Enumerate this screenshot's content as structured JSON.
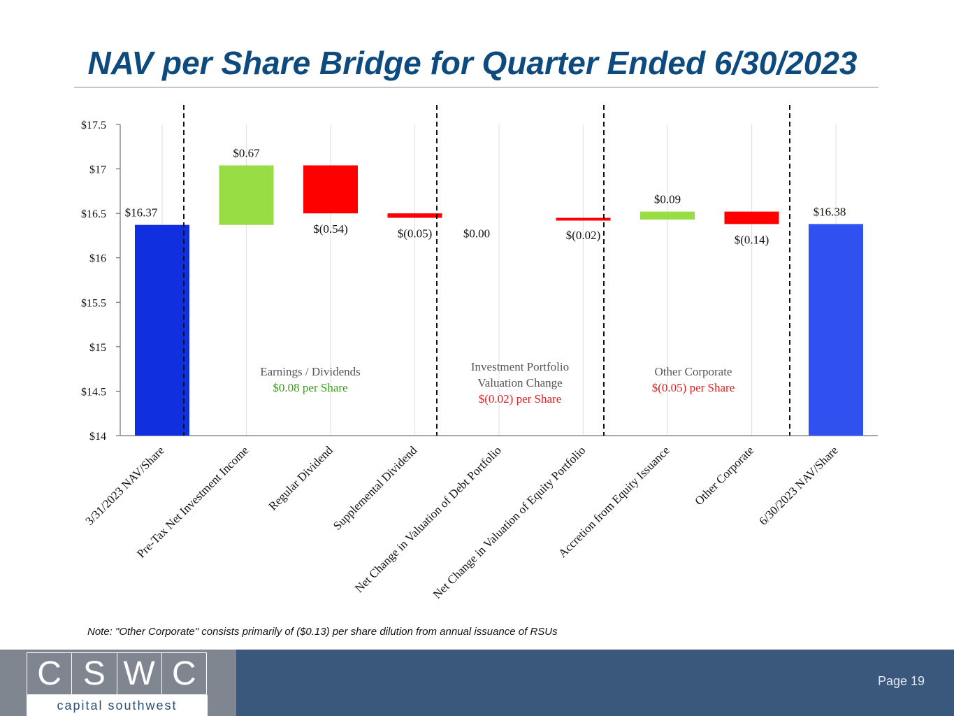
{
  "page": {
    "title": "NAV per Share Bridge for Quarter Ended 6/30/2023",
    "note": "Note: \"Other Corporate\" consists primarily of ($0.13) per share dilution from annual issuance of RSUs",
    "page_number": "Page 19",
    "logo": {
      "letters": [
        "C",
        "S",
        "W",
        "C"
      ],
      "subtitle": "capital southwest"
    }
  },
  "colors": {
    "title": "#0d4a7e",
    "start_bar": "#1030e0",
    "end_bar": "#3050f0",
    "increase": "#99dd44",
    "decrease": "#ff0000",
    "green_text": "#3a9a1a",
    "red_text": "#e02020",
    "footer_dark": "#3a587c",
    "footer_grey": "#7f8690"
  },
  "chart_data": {
    "type": "waterfall",
    "title": "NAV per Share Bridge for Quarter Ended 6/30/2023",
    "ylim": [
      14,
      17.5
    ],
    "yticks": [
      14,
      14.5,
      15,
      15.5,
      16,
      16.5,
      17,
      17.5
    ],
    "ytick_labels": [
      "$14",
      "$14.5",
      "$15",
      "$15.5",
      "$16",
      "$16.5",
      "$17",
      "$17.5"
    ],
    "grid": "vertical",
    "bars": [
      {
        "category": "3/31/2023 NAV/Share",
        "kind": "total",
        "start": 14,
        "end": 16.37,
        "label": "$16.37"
      },
      {
        "category": "Pre-Tax Net Investment Income",
        "kind": "increase",
        "start": 16.37,
        "end": 17.04,
        "label": "$0.67"
      },
      {
        "category": "Regular Dividend",
        "kind": "decrease",
        "start": 17.04,
        "end": 16.5,
        "label": "$(0.54)"
      },
      {
        "category": "Supplemental Dividend",
        "kind": "decrease",
        "start": 16.5,
        "end": 16.45,
        "label": "$(0.05)"
      },
      {
        "category": "Net Change in Valuation of Debt Portfolio",
        "kind": "increase",
        "start": 16.45,
        "end": 16.45,
        "label": "$0.00"
      },
      {
        "category": "Net Change in Valuation of Equity Portfolio",
        "kind": "decrease",
        "start": 16.45,
        "end": 16.43,
        "label": "$(0.02)"
      },
      {
        "category": "Accretion from Equity Issuance",
        "kind": "increase",
        "start": 16.43,
        "end": 16.52,
        "label": "$0.09"
      },
      {
        "category": "Other Corporate",
        "kind": "decrease",
        "start": 16.52,
        "end": 16.38,
        "label": "$(0.14)"
      },
      {
        "category": "6/30/2023 NAV/Share",
        "kind": "total",
        "start": 14,
        "end": 16.38,
        "label": "$16.38"
      }
    ],
    "groups": [
      {
        "heading": [
          "Earnings / Dividends"
        ],
        "value": "$0.08 per Share",
        "tone": "green"
      },
      {
        "heading": [
          "Investment Portfolio",
          "Valuation Change"
        ],
        "value": "$(0.02) per Share",
        "tone": "red"
      },
      {
        "heading": [
          "Other Corporate"
        ],
        "value": "$(0.05) per Share",
        "tone": "red"
      }
    ]
  }
}
